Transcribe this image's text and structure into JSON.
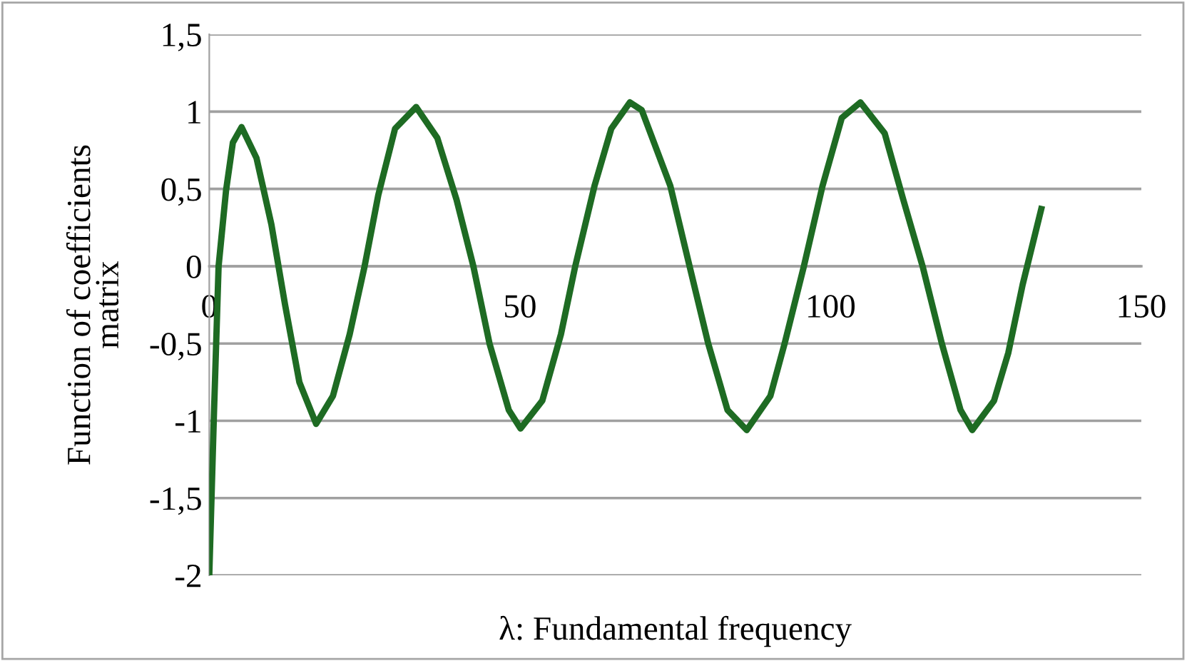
{
  "chart_data": {
    "type": "line",
    "xlabel": "λ: Fundamental frequency",
    "ylabel": "Function of coefficients\nmatrix",
    "xlim": [
      0,
      150
    ],
    "xticks": [
      0,
      50,
      100,
      150
    ],
    "ylim": [
      -2,
      1.5
    ],
    "yticks": [
      -2,
      {
        "value": -1.5,
        "label": "-1,5"
      },
      -1,
      {
        "value": -0.5,
        "label": "-0,5"
      },
      0,
      {
        "value": 0.5,
        "label": "0,5"
      },
      1,
      {
        "value": 1.5,
        "label": "1,5"
      }
    ],
    "grid": "y",
    "marker": "none",
    "line_style": "solid",
    "series": [
      {
        "color": "#1e6b23",
        "x": [
          0,
          0.75,
          1.5,
          2.7,
          3.8,
          5.2,
          7.6,
          10,
          12.2,
          14.5,
          17.2,
          19.9,
          22.6,
          25,
          27.2,
          29.9,
          33.3,
          36.7,
          39.8,
          42.5,
          45.1,
          48.2,
          50.1,
          53.6,
          56.6,
          58.9,
          62,
          64.7,
          67.7,
          69.6,
          74.2,
          77.3,
          80.3,
          83.4,
          86.5,
          90.3,
          92.6,
          95.7,
          98.7,
          101.8,
          104.8,
          108.7,
          111.7,
          114.8,
          117.9,
          120.9,
          122.8,
          126.3,
          128.6,
          130.9,
          133.9
        ],
        "values": [
          -2,
          -0.96,
          0,
          0.49,
          0.8,
          0.9,
          0.7,
          0.27,
          -0.25,
          -0.75,
          -1.02,
          -0.84,
          -0.44,
          0,
          0.46,
          0.89,
          1.03,
          0.83,
          0.43,
          0,
          -0.5,
          -0.93,
          -1.05,
          -0.87,
          -0.44,
          0,
          0.52,
          0.89,
          1.06,
          1.01,
          0.52,
          0,
          -0.5,
          -0.93,
          -1.06,
          -0.84,
          -0.5,
          0,
          0.52,
          0.96,
          1.06,
          0.86,
          0.43,
          0,
          -0.5,
          -0.93,
          -1.06,
          -0.87,
          -0.56,
          -0.12,
          0.37
        ]
      }
    ]
  }
}
